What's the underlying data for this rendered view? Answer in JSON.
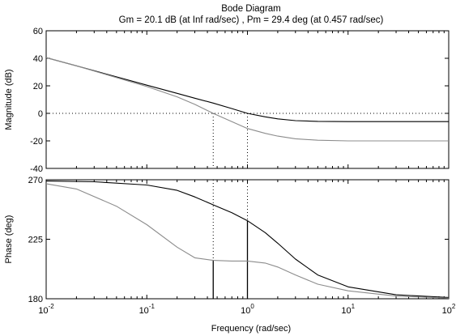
{
  "title": "Bode Diagram",
  "subtitle": "Gm = 20.1 dB (at Inf rad/sec) ,  Pm = 29.4 deg (at 0.457 rad/sec)",
  "chart_data": [
    {
      "type": "line",
      "panel": "magnitude",
      "ylabel": "Magnitude (dB)",
      "xscale": "log",
      "xlim": [
        0.01,
        100
      ],
      "ylim": [
        -40,
        60
      ],
      "xticks": [
        0.01,
        0.1,
        1,
        10,
        100
      ],
      "yticks": [
        -40,
        -20,
        0,
        20,
        40,
        60
      ],
      "ytick_labels": [
        "-40",
        "-20",
        "0",
        "20",
        "40",
        "60"
      ],
      "reference_line_y": 0,
      "series": [
        {
          "color": "#000000",
          "points": [
            [
              0.01,
              40.5
            ],
            [
              0.02,
              34.5
            ],
            [
              0.05,
              26.5
            ],
            [
              0.1,
              20.5
            ],
            [
              0.2,
              14.5
            ],
            [
              0.3,
              11
            ],
            [
              0.457,
              7.5
            ],
            [
              0.7,
              3.5
            ],
            [
              1.0,
              0
            ],
            [
              1.5,
              -2.5
            ],
            [
              2.0,
              -4
            ],
            [
              3.0,
              -5.3
            ],
            [
              5.0,
              -5.8
            ],
            [
              10,
              -6
            ],
            [
              30,
              -6
            ],
            [
              100,
              -6
            ]
          ]
        },
        {
          "color": "#8c8c8c",
          "points": [
            [
              0.01,
              40.5
            ],
            [
              0.02,
              34.5
            ],
            [
              0.05,
              26
            ],
            [
              0.1,
              19.5
            ],
            [
              0.2,
              12
            ],
            [
              0.3,
              6.5
            ],
            [
              0.457,
              0
            ],
            [
              0.7,
              -6
            ],
            [
              1.0,
              -11
            ],
            [
              1.5,
              -14.5
            ],
            [
              2.0,
              -16.5
            ],
            [
              3.0,
              -18.5
            ],
            [
              5.0,
              -19.5
            ],
            [
              10,
              -20
            ],
            [
              30,
              -20
            ],
            [
              100,
              -20
            ]
          ]
        }
      ],
      "markers": [
        {
          "x": 0.457,
          "y_from": 0,
          "y_to": -40,
          "style": "dotted"
        },
        {
          "x": 1.0,
          "y_from": 0,
          "y_to": -40,
          "style": "dotted"
        }
      ]
    },
    {
      "type": "line",
      "panel": "phase",
      "ylabel": "Phase (deg)",
      "xlabel": "Frequency  (rad/sec)",
      "xscale": "log",
      "xlim": [
        0.01,
        100
      ],
      "ylim": [
        180,
        270
      ],
      "xticks": [
        0.01,
        0.1,
        1,
        10,
        100
      ],
      "xtick_bases": [
        "10",
        "10",
        "10",
        "10",
        "10"
      ],
      "xtick_exponents": [
        "-2",
        "-1",
        "0",
        "1",
        "2"
      ],
      "yticks": [
        180,
        225,
        270
      ],
      "ytick_labels": [
        "180",
        "225",
        "270"
      ],
      "series": [
        {
          "color": "#000000",
          "points": [
            [
              0.01,
              269
            ],
            [
              0.03,
              268.5
            ],
            [
              0.1,
              266
            ],
            [
              0.2,
              262
            ],
            [
              0.3,
              257
            ],
            [
              0.457,
              251
            ],
            [
              0.7,
              245
            ],
            [
              1.0,
              239
            ],
            [
              1.5,
              230
            ],
            [
              2.0,
              222
            ],
            [
              3.0,
              210
            ],
            [
              5.0,
              198
            ],
            [
              10,
              189
            ],
            [
              30,
              183
            ],
            [
              100,
              181
            ]
          ]
        },
        {
          "color": "#8c8c8c",
          "points": [
            [
              0.01,
              267
            ],
            [
              0.02,
              263
            ],
            [
              0.05,
              250
            ],
            [
              0.1,
              236
            ],
            [
              0.2,
              219
            ],
            [
              0.3,
              211
            ],
            [
              0.457,
              209
            ],
            [
              0.7,
              208.5
            ],
            [
              1.0,
              208.5
            ],
            [
              1.5,
              207
            ],
            [
              2.0,
              204
            ],
            [
              3.0,
              198
            ],
            [
              5.0,
              191
            ],
            [
              10,
              186
            ],
            [
              30,
              182
            ],
            [
              100,
              180.5
            ]
          ]
        }
      ],
      "markers": [
        {
          "x": 0.457,
          "y_from": 270,
          "y_to": 209.4,
          "style": "dotted"
        },
        {
          "x": 0.457,
          "y_from": 209.4,
          "y_to": 180,
          "style": "solid"
        },
        {
          "x": 1.0,
          "y_from": 270,
          "y_to": 239,
          "style": "dotted"
        },
        {
          "x": 1.0,
          "y_from": 239,
          "y_to": 180,
          "style": "solid"
        }
      ]
    }
  ]
}
